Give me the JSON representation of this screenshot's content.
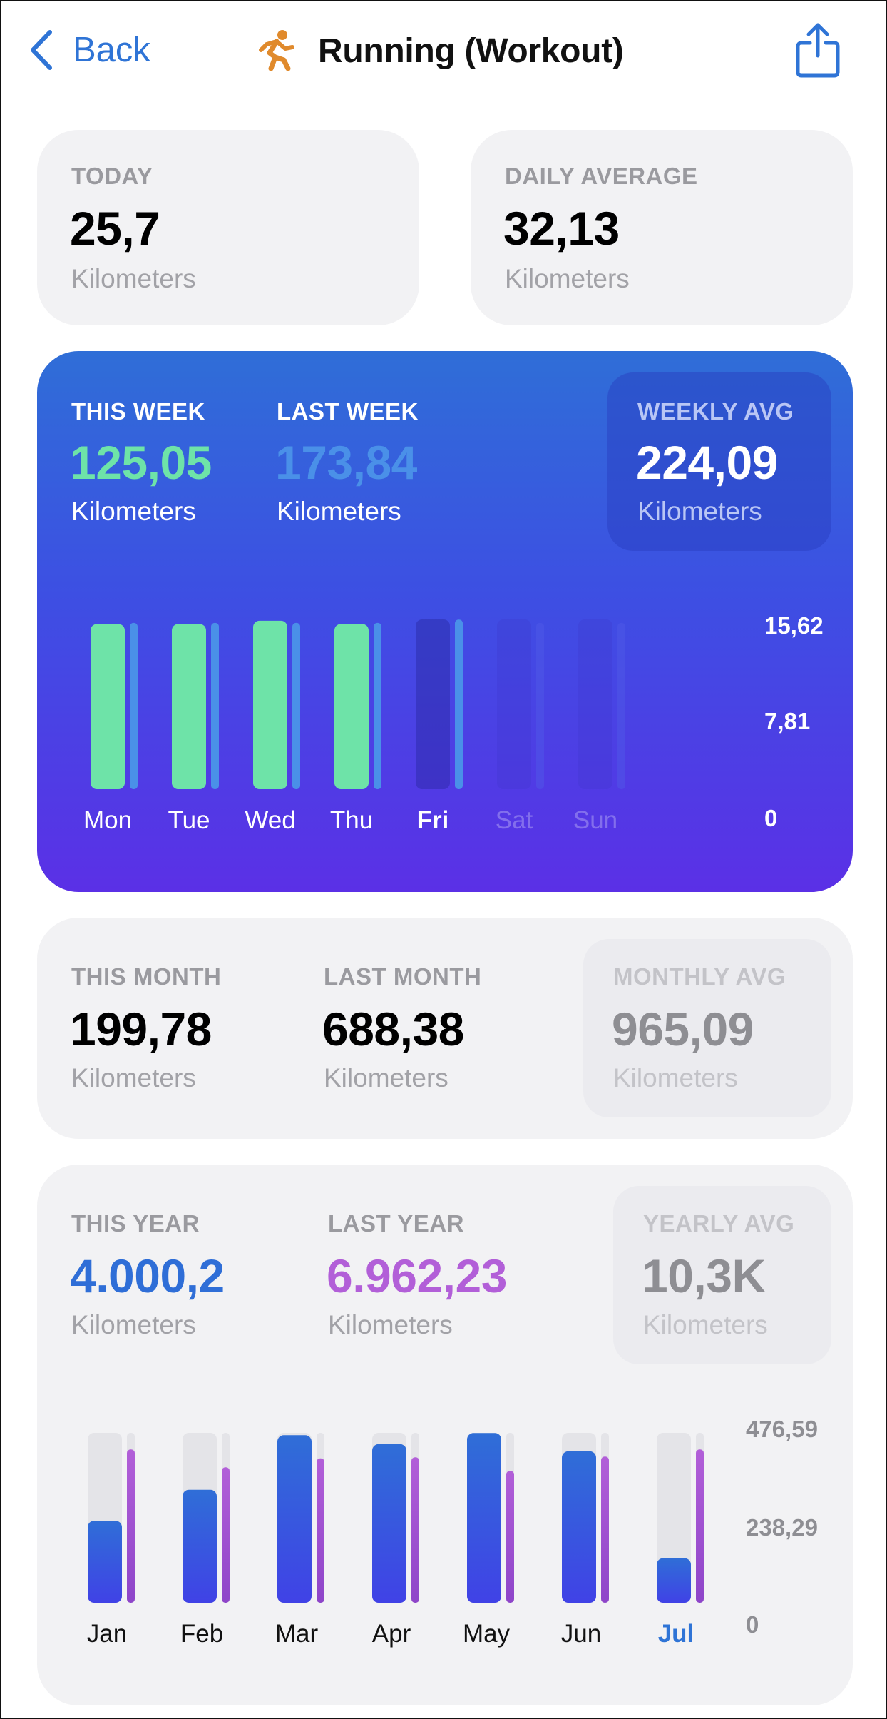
{
  "header": {
    "back_label": "Back",
    "title": "Running (Workout)"
  },
  "today": {
    "label": "TODAY",
    "value": "25,7",
    "unit": "Kilometers"
  },
  "daily_avg": {
    "label": "DAILY AVERAGE",
    "value": "32,13",
    "unit": "Kilometers"
  },
  "week": {
    "this_label": "THIS WEEK",
    "this_value": "125,05",
    "this_unit": "Kilometers",
    "last_label": "LAST WEEK",
    "last_value": "173,84",
    "last_unit": "Kilometers",
    "avg_label": "WEEKLY AVG",
    "avg_value": "224,09",
    "avg_unit": "Kilometers"
  },
  "month": {
    "this_label": "THIS MONTH",
    "this_value": "199,78",
    "this_unit": "Kilometers",
    "last_label": "LAST MONTH",
    "last_value": "688,38",
    "last_unit": "Kilometers",
    "avg_label": "MONTHLY AVG",
    "avg_value": "965,09",
    "avg_unit": "Kilometers"
  },
  "year": {
    "this_label": "THIS YEAR",
    "this_value": "4.000,2",
    "this_unit": "Kilometers",
    "last_label": "LAST YEAR",
    "last_value": "6.962,23",
    "last_unit": "Kilometers",
    "avg_label": "YEARLY AVG",
    "avg_value": "10,3K",
    "avg_unit": "Kilometers"
  },
  "colors": {
    "accent_blue": "#2f74d6",
    "this_week_green": "#6ee3a8",
    "last_week_blue": "#4a90e8",
    "last_year_purple": "#b25fd8",
    "this_year_blue": "#2f6ed7"
  },
  "chart_data": [
    {
      "type": "bar",
      "categories": [
        "Mon",
        "Tue",
        "Wed",
        "Thu",
        "Fri",
        "Sat",
        "Sun"
      ],
      "highlight": "Fri",
      "ylim": [
        0,
        15.62
      ],
      "yticks": [
        "15,62",
        "7,81",
        "0"
      ],
      "series": [
        {
          "values": [
            15.2,
            15.2,
            15.5,
            15.2,
            0,
            0,
            0
          ]
        },
        {
          "values": [
            15.3,
            15.3,
            15.3,
            15.3,
            15.6,
            15.3,
            15.3
          ]
        }
      ]
    },
    {
      "type": "bar",
      "categories": [
        "Jan",
        "Feb",
        "Mar",
        "Apr",
        "May",
        "Jun",
        "Jul"
      ],
      "highlight": "Jul",
      "ylim": [
        0,
        476.59
      ],
      "yticks": [
        "476,59",
        "238,29",
        "0"
      ],
      "series": [
        {
          "values": [
            230,
            317,
            470,
            445,
            476,
            425,
            125
          ]
        },
        {
          "values": [
            430,
            380,
            405,
            408,
            370,
            410,
            430
          ]
        }
      ]
    }
  ]
}
